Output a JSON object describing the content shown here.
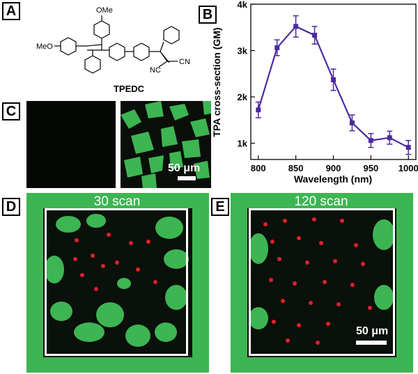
{
  "panels": {
    "a": {
      "letter": "A",
      "compound_name": "TPEDC",
      "groups": {
        "ome_top": "OMe",
        "meo_left": "MeO",
        "nc": "NC",
        "cn": "CN"
      }
    },
    "b": {
      "letter": "B"
    },
    "c": {
      "letter": "C",
      "scale_bar": "50 μm"
    },
    "d": {
      "letter": "D",
      "overlay_label": "30 scan"
    },
    "e": {
      "letter": "E",
      "overlay_label": "120 scan",
      "scale_bar": "50 μm"
    }
  },
  "chart_data": {
    "type": "line",
    "xlabel": "Wavelength (nm)",
    "ylabel": "TPA cross-section (GM)",
    "xlim": [
      790,
      1010
    ],
    "ylim": [
      650,
      4000
    ],
    "x_ticks": [
      800,
      850,
      900,
      950,
      1000
    ],
    "y_ticks": [
      1000,
      2000,
      3000,
      4000
    ],
    "y_tick_labels": [
      "1k",
      "2k",
      "3k",
      "4k"
    ],
    "x": [
      800,
      825,
      850,
      875,
      900,
      925,
      950,
      975,
      1000
    ],
    "values": [
      1720,
      3060,
      3520,
      3330,
      2370,
      1440,
      1060,
      1120,
      910
    ],
    "errors": [
      170,
      170,
      230,
      190,
      230,
      170,
      150,
      140,
      150
    ],
    "color": "#4b2aa0",
    "grid": false
  }
}
